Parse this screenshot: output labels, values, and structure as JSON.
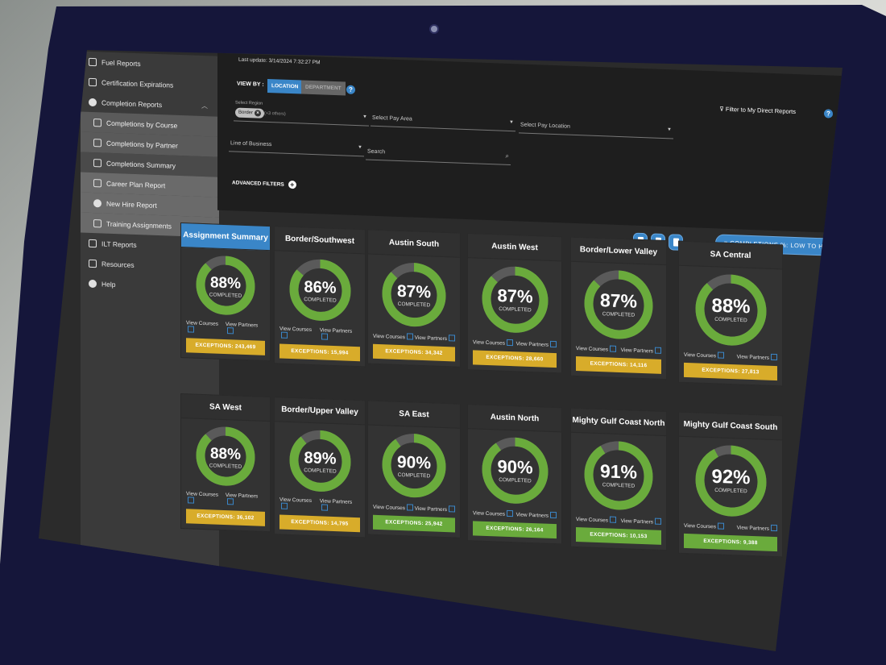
{
  "sidebar": {
    "items": [
      {
        "label": "Fuel Reports",
        "icon": "document-icon",
        "level": 0
      },
      {
        "label": "Certification Expirations",
        "icon": "clock-icon",
        "level": 0
      },
      {
        "label": "Completion Reports",
        "icon": "check-circle-icon",
        "level": 0,
        "expanded": true
      },
      {
        "label": "Completions by Course",
        "icon": "book-icon",
        "level": 1
      },
      {
        "label": "Completions by Partner",
        "icon": "person-icon",
        "level": 1
      },
      {
        "label": "Completions Summary",
        "icon": "list-icon",
        "level": 1,
        "active": true
      },
      {
        "label": "Career Plan Report",
        "icon": "steps-icon",
        "level": 2
      },
      {
        "label": "New Hire Report",
        "icon": "user-icon",
        "level": 2
      },
      {
        "label": "Training Assignments",
        "icon": "home-icon",
        "level": 2
      },
      {
        "label": "ILT Reports",
        "icon": "monitor-icon",
        "level": 0
      },
      {
        "label": "Resources",
        "icon": "gear-icon",
        "level": 0
      },
      {
        "label": "Help",
        "icon": "help-icon",
        "level": 0
      }
    ]
  },
  "filters": {
    "last_update": "Last update: 3/14/2024 7:32:27 PM",
    "view_by_label": "VIEW BY :",
    "location_toggle": "LOCATION",
    "department_toggle": "DEPARTMENT",
    "select_region_label": "Select Region",
    "region_chip": "Border",
    "region_others": "(+3 others)",
    "pay_area_placeholder": "Select Pay Area",
    "pay_location_placeholder": "Select Pay Location",
    "line_of_business_placeholder": "Line of Business",
    "search_placeholder": "Search",
    "advanced_filters": "ADVANCED FILTERS",
    "direct_reports": "Filter to My Direct Reports",
    "sort_button": "COMPLETIONS %: LOW TO HIGH"
  },
  "cards": [
    {
      "title": "Assignment Summary",
      "percent": 88,
      "value_text": "88%",
      "completed": "COMPLETED",
      "view_courses": "View Courses",
      "view_partners": "View Partners",
      "exceptions": "EXCEPTIONS: 243,469",
      "status": "gold",
      "active": true
    },
    {
      "title": "Border/Southwest",
      "percent": 86,
      "value_text": "86%",
      "completed": "COMPLETED",
      "view_courses": "View Courses",
      "view_partners": "View Partners",
      "exceptions": "EXCEPTIONS: 15,994",
      "status": "gold"
    },
    {
      "title": "Austin South",
      "percent": 87,
      "value_text": "87%",
      "completed": "COMPLETED",
      "view_courses": "View Courses",
      "view_partners": "View Partners",
      "exceptions": "EXCEPTIONS: 34,342",
      "status": "gold"
    },
    {
      "title": "Austin West",
      "percent": 87,
      "value_text": "87%",
      "completed": "COMPLETED",
      "view_courses": "View Courses",
      "view_partners": "View Partners",
      "exceptions": "EXCEPTIONS: 28,660",
      "status": "gold"
    },
    {
      "title": "Border/Lower Valley",
      "percent": 87,
      "value_text": "87%",
      "completed": "COMPLETED",
      "view_courses": "View Courses",
      "view_partners": "View Partners",
      "exceptions": "EXCEPTIONS: 14,116",
      "status": "gold"
    },
    {
      "title": "SA Central",
      "percent": 88,
      "value_text": "88%",
      "completed": "COMPLETED",
      "view_courses": "View Courses",
      "view_partners": "View Partners",
      "exceptions": "EXCEPTIONS: 27,813",
      "status": "gold"
    },
    {
      "title": "SA West",
      "percent": 88,
      "value_text": "88%",
      "completed": "COMPLETED",
      "view_courses": "View Courses",
      "view_partners": "View Partners",
      "exceptions": "EXCEPTIONS: 36,102",
      "status": "gold"
    },
    {
      "title": "Border/Upper Valley",
      "percent": 89,
      "value_text": "89%",
      "completed": "COMPLETED",
      "view_courses": "View Courses",
      "view_partners": "View Partners",
      "exceptions": "EXCEPTIONS: 14,795",
      "status": "gold"
    },
    {
      "title": "SA East",
      "percent": 90,
      "value_text": "90%",
      "completed": "COMPLETED",
      "view_courses": "View Courses",
      "view_partners": "View Partners",
      "exceptions": "EXCEPTIONS: 25,942",
      "status": "green"
    },
    {
      "title": "Austin North",
      "percent": 90,
      "value_text": "90%",
      "completed": "COMPLETED",
      "view_courses": "View Courses",
      "view_partners": "View Partners",
      "exceptions": "EXCEPTIONS: 26,164",
      "status": "green"
    },
    {
      "title": "Mighty Gulf Coast North",
      "percent": 91,
      "value_text": "91%",
      "completed": "COMPLETED",
      "view_courses": "View Courses",
      "view_partners": "View Partners",
      "exceptions": "EXCEPTIONS: 10,153",
      "status": "green"
    },
    {
      "title": "Mighty Gulf Coast South",
      "percent": 92,
      "value_text": "92%",
      "completed": "COMPLETED",
      "view_courses": "View Courses",
      "view_partners": "View Partners",
      "exceptions": "EXCEPTIONS: 9,388",
      "status": "green"
    }
  ],
  "colors": {
    "accent": "#3a86c8",
    "donut_fill": "#6aab3c",
    "donut_track": "#5a5a5a",
    "exception_gold": "#d8ac2a",
    "exception_green": "#6aab3c"
  }
}
